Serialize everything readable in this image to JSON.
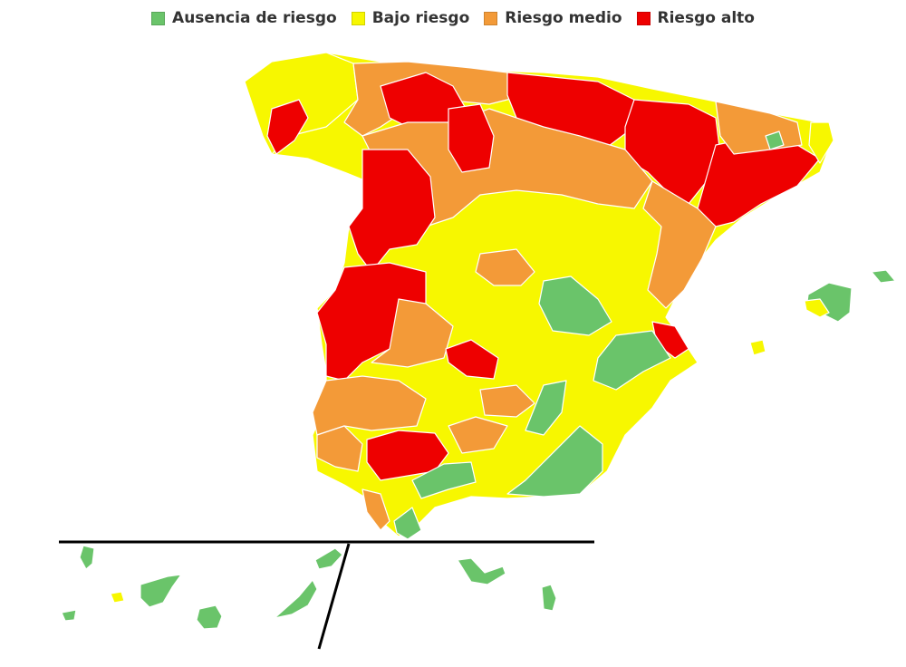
{
  "legend": {
    "items": [
      {
        "label": "Ausencia de riesgo",
        "color": "#6ac46a"
      },
      {
        "label": "Bajo riesgo",
        "color": "#f7f700"
      },
      {
        "label": "Riesgo medio",
        "color": "#f39a38"
      },
      {
        "label": "Riesgo alto",
        "color": "#ee0000"
      }
    ]
  },
  "map": {
    "subject": "Spain risk levels by district",
    "colors": {
      "none": "#6ac46a",
      "low": "#f7f700",
      "medium": "#f39a38",
      "high": "#ee0000",
      "divider": "#000000"
    }
  }
}
